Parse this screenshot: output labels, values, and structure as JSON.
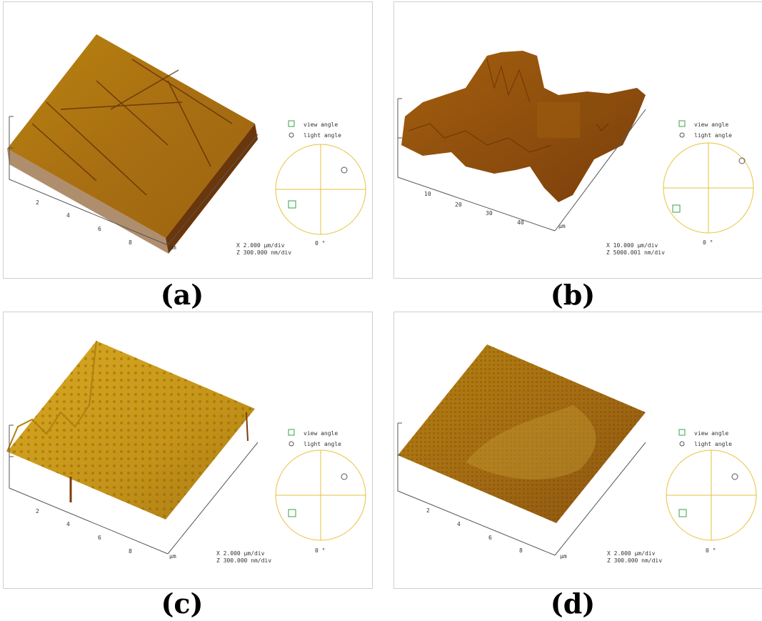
{
  "panels": [
    {
      "id": "a",
      "label": "(a)",
      "x_ticks": [
        "2",
        "4",
        "6",
        "8"
      ],
      "unit": "µm",
      "scale_x": "X  2.000 µm/div",
      "scale_z": "Z  300.000 nm/div",
      "legend_view": "view angle",
      "legend_light": "light angle",
      "dial_zero": "0 °",
      "surface": "scratched"
    },
    {
      "id": "b",
      "label": "(b)",
      "x_ticks": [
        "10",
        "20",
        "30",
        "40"
      ],
      "unit": "µm",
      "scale_x": "X  10.000 µm/div",
      "scale_z": "Z  5000.001 nm/div",
      "legend_view": "view angle",
      "legend_light": "light angle",
      "dial_zero": "0 °",
      "surface": "rough"
    },
    {
      "id": "c",
      "label": "(c)",
      "x_ticks": [
        "2",
        "4",
        "6",
        "8"
      ],
      "unit": "µm",
      "scale_x": "X  2.000 µm/div",
      "scale_z": "Z  300.000 nm/div",
      "legend_view": "view angle",
      "legend_light": "light angle",
      "dial_zero": "0 °",
      "surface": "spiky"
    },
    {
      "id": "d",
      "label": "(d)",
      "x_ticks": [
        "2",
        "4",
        "6",
        "8"
      ],
      "unit": "µm",
      "scale_x": "X  2.000 µm/div",
      "scale_z": "Z  300.000 nm/div",
      "legend_view": "view angle",
      "legend_light": "light angle",
      "dial_zero": "0 °",
      "surface": "textured"
    }
  ],
  "colors": {
    "surface_light": "#d4a11c",
    "surface_mid": "#b07a12",
    "surface_dark": "#7a3e0c",
    "dial": "#e6c23c",
    "icon_green": "#3aa04a"
  }
}
